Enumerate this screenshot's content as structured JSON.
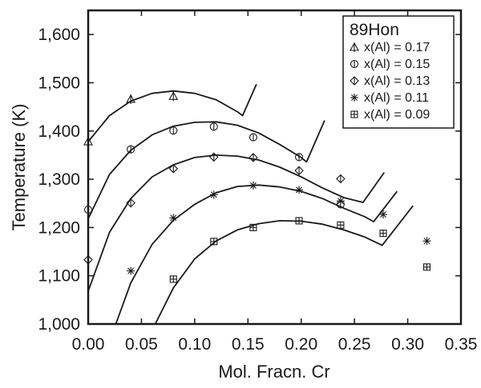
{
  "chart_data": {
    "type": "scatter",
    "xlabel": "Mol. Fracn. Cr",
    "ylabel": "Temperature (K)",
    "xlim": [
      0.0,
      0.35
    ],
    "ylim": [
      1000,
      1650
    ],
    "xticks": [
      0.0,
      0.05,
      0.1,
      0.15,
      0.2,
      0.25,
      0.3,
      0.35
    ],
    "xtick_labels": [
      "0.00",
      "0.05",
      "0.10",
      "0.15",
      "0.20",
      "0.25",
      "0.30",
      "0.35"
    ],
    "yticks": [
      1000,
      1100,
      1200,
      1300,
      1400,
      1500,
      1600
    ],
    "ytick_labels": [
      "1,000",
      "1,100",
      "1,200",
      "1,300",
      "1,400",
      "1,500",
      "1,600"
    ],
    "grid": false,
    "legend_position": "top-right",
    "legend_title": "89Hon",
    "color": "#1a1a1a",
    "series": [
      {
        "name": "x(Al) = 0.17",
        "marker": "triangle-line",
        "points": [
          [
            0.0,
            1378
          ],
          [
            0.04,
            1466
          ],
          [
            0.08,
            1472
          ]
        ],
        "curve": [
          [
            0.0,
            1378
          ],
          [
            0.02,
            1432
          ],
          [
            0.04,
            1462
          ],
          [
            0.06,
            1478
          ],
          [
            0.08,
            1483
          ],
          [
            0.1,
            1478
          ],
          [
            0.12,
            1465
          ],
          [
            0.14,
            1440
          ],
          [
            0.145,
            1432
          ],
          [
            0.158,
            1497
          ]
        ]
      },
      {
        "name": "x(Al) = 0.15",
        "marker": "circle-line",
        "points": [
          [
            0.0,
            1237
          ],
          [
            0.04,
            1362
          ],
          [
            0.08,
            1401
          ],
          [
            0.118,
            1409
          ],
          [
            0.155,
            1387
          ],
          [
            0.198,
            1346
          ],
          [
            0.237,
            1248
          ]
        ],
        "curve": [
          [
            0.0,
            1218
          ],
          [
            0.02,
            1310
          ],
          [
            0.04,
            1360
          ],
          [
            0.06,
            1392
          ],
          [
            0.08,
            1410
          ],
          [
            0.1,
            1418
          ],
          [
            0.12,
            1419
          ],
          [
            0.14,
            1412
          ],
          [
            0.16,
            1396
          ],
          [
            0.18,
            1372
          ],
          [
            0.2,
            1345
          ],
          [
            0.205,
            1336
          ],
          [
            0.222,
            1422
          ]
        ]
      },
      {
        "name": "x(Al) = 0.13",
        "marker": "diamond-line",
        "points": [
          [
            0.0,
            1133
          ],
          [
            0.04,
            1251
          ],
          [
            0.08,
            1322
          ],
          [
            0.118,
            1346
          ],
          [
            0.155,
            1345
          ],
          [
            0.198,
            1318
          ],
          [
            0.237,
            1301
          ]
        ],
        "curve": [
          [
            0.0,
            1068
          ],
          [
            0.02,
            1190
          ],
          [
            0.04,
            1260
          ],
          [
            0.06,
            1305
          ],
          [
            0.08,
            1330
          ],
          [
            0.1,
            1345
          ],
          [
            0.12,
            1350
          ],
          [
            0.14,
            1348
          ],
          [
            0.16,
            1340
          ],
          [
            0.18,
            1325
          ],
          [
            0.2,
            1305
          ],
          [
            0.22,
            1282
          ],
          [
            0.24,
            1262
          ],
          [
            0.258,
            1252
          ],
          [
            0.278,
            1314
          ]
        ]
      },
      {
        "name": "x(Al) = 0.11",
        "marker": "asterisk",
        "points": [
          [
            0.04,
            1110
          ],
          [
            0.08,
            1220
          ],
          [
            0.118,
            1268
          ],
          [
            0.155,
            1287
          ],
          [
            0.198,
            1278
          ],
          [
            0.237,
            1255
          ],
          [
            0.277,
            1227
          ],
          [
            0.318,
            1172
          ]
        ],
        "curve": [
          [
            0.026,
            1000
          ],
          [
            0.04,
            1085
          ],
          [
            0.06,
            1165
          ],
          [
            0.08,
            1215
          ],
          [
            0.1,
            1248
          ],
          [
            0.12,
            1272
          ],
          [
            0.14,
            1285
          ],
          [
            0.16,
            1288
          ],
          [
            0.18,
            1284
          ],
          [
            0.2,
            1275
          ],
          [
            0.22,
            1260
          ],
          [
            0.24,
            1240
          ],
          [
            0.26,
            1222
          ],
          [
            0.268,
            1212
          ],
          [
            0.29,
            1275
          ]
        ]
      },
      {
        "name": "x(Al) = 0.09",
        "marker": "boxed-plus",
        "points": [
          [
            0.08,
            1093
          ],
          [
            0.118,
            1171
          ],
          [
            0.155,
            1200
          ],
          [
            0.198,
            1214
          ],
          [
            0.237,
            1205
          ],
          [
            0.277,
            1188
          ],
          [
            0.318,
            1118
          ]
        ],
        "curve": [
          [
            0.063,
            1000
          ],
          [
            0.08,
            1075
          ],
          [
            0.1,
            1135
          ],
          [
            0.12,
            1172
          ],
          [
            0.14,
            1195
          ],
          [
            0.16,
            1208
          ],
          [
            0.18,
            1214
          ],
          [
            0.2,
            1213
          ],
          [
            0.22,
            1207
          ],
          [
            0.24,
            1195
          ],
          [
            0.26,
            1180
          ],
          [
            0.276,
            1163
          ],
          [
            0.305,
            1245
          ]
        ]
      }
    ]
  }
}
